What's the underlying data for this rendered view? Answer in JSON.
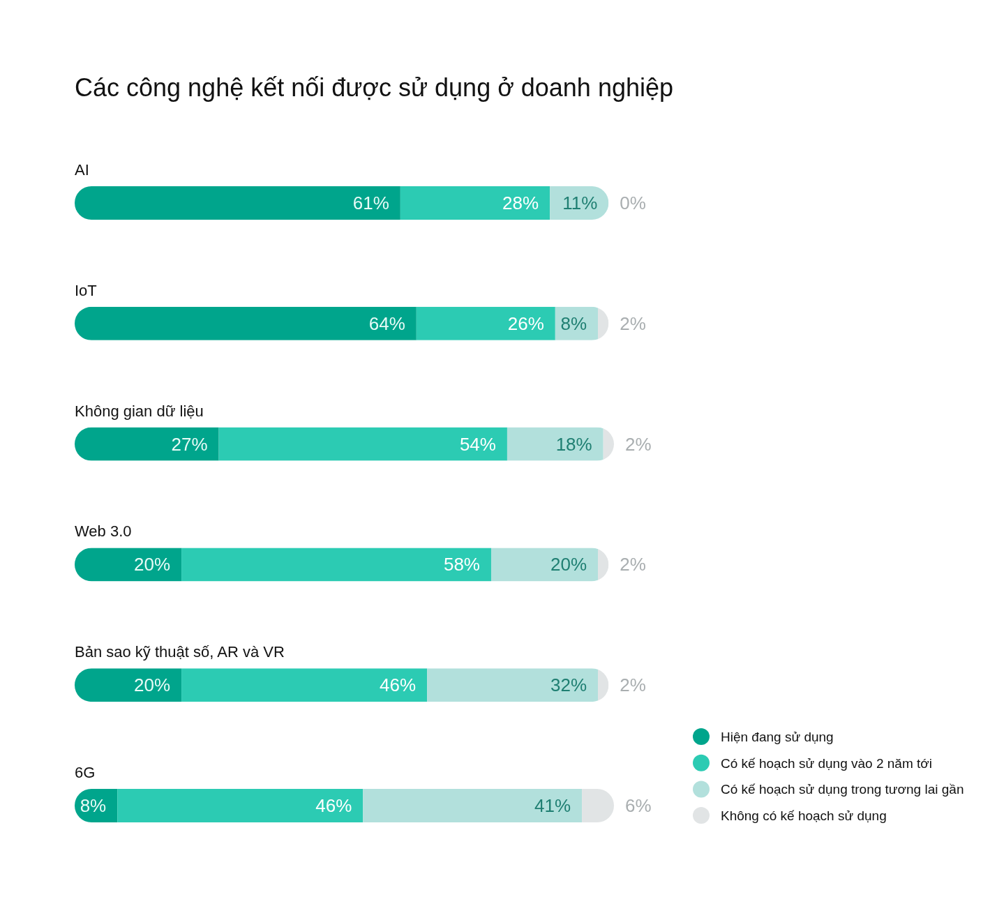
{
  "chart_data": {
    "type": "bar",
    "orientation": "horizontal",
    "stacked": true,
    "title": "Các công nghệ kết nối được sử dụng ở doanh nghiệp",
    "categories": [
      "AI",
      "IoT",
      "Không gian dữ liệu",
      "Web 3.0",
      "Bản sao kỹ thuật số, AR và VR",
      "6G"
    ],
    "series": [
      {
        "name": "Hiện đang sử dụng",
        "color": "#00a58c",
        "values": [
          61,
          64,
          27,
          20,
          20,
          8
        ],
        "value_labels": [
          "61%",
          "64%",
          "27%",
          "20%",
          "20%",
          "8%"
        ]
      },
      {
        "name": "Có kế hoạch sử dụng vào 2 năm tới",
        "color": "#2ccbb3",
        "values": [
          28,
          26,
          54,
          58,
          46,
          46
        ],
        "value_labels": [
          "28%",
          "26%",
          "54%",
          "58%",
          "46%",
          "46%"
        ]
      },
      {
        "name": "Có kế hoạch sử dụng trong tương lai gần",
        "color": "#b2e0dc",
        "values": [
          11,
          8,
          18,
          20,
          32,
          41
        ],
        "value_labels": [
          "11%",
          "8%",
          "18%",
          "20%",
          "32%",
          "41%"
        ]
      },
      {
        "name": "Không có kế hoạch sử dụng",
        "color": "#e1e4e5",
        "values": [
          0,
          2,
          2,
          2,
          2,
          6
        ],
        "value_labels": [
          "0%",
          "2%",
          "2%",
          "2%",
          "2%",
          "6%"
        ]
      }
    ],
    "legend": "bottom right"
  }
}
